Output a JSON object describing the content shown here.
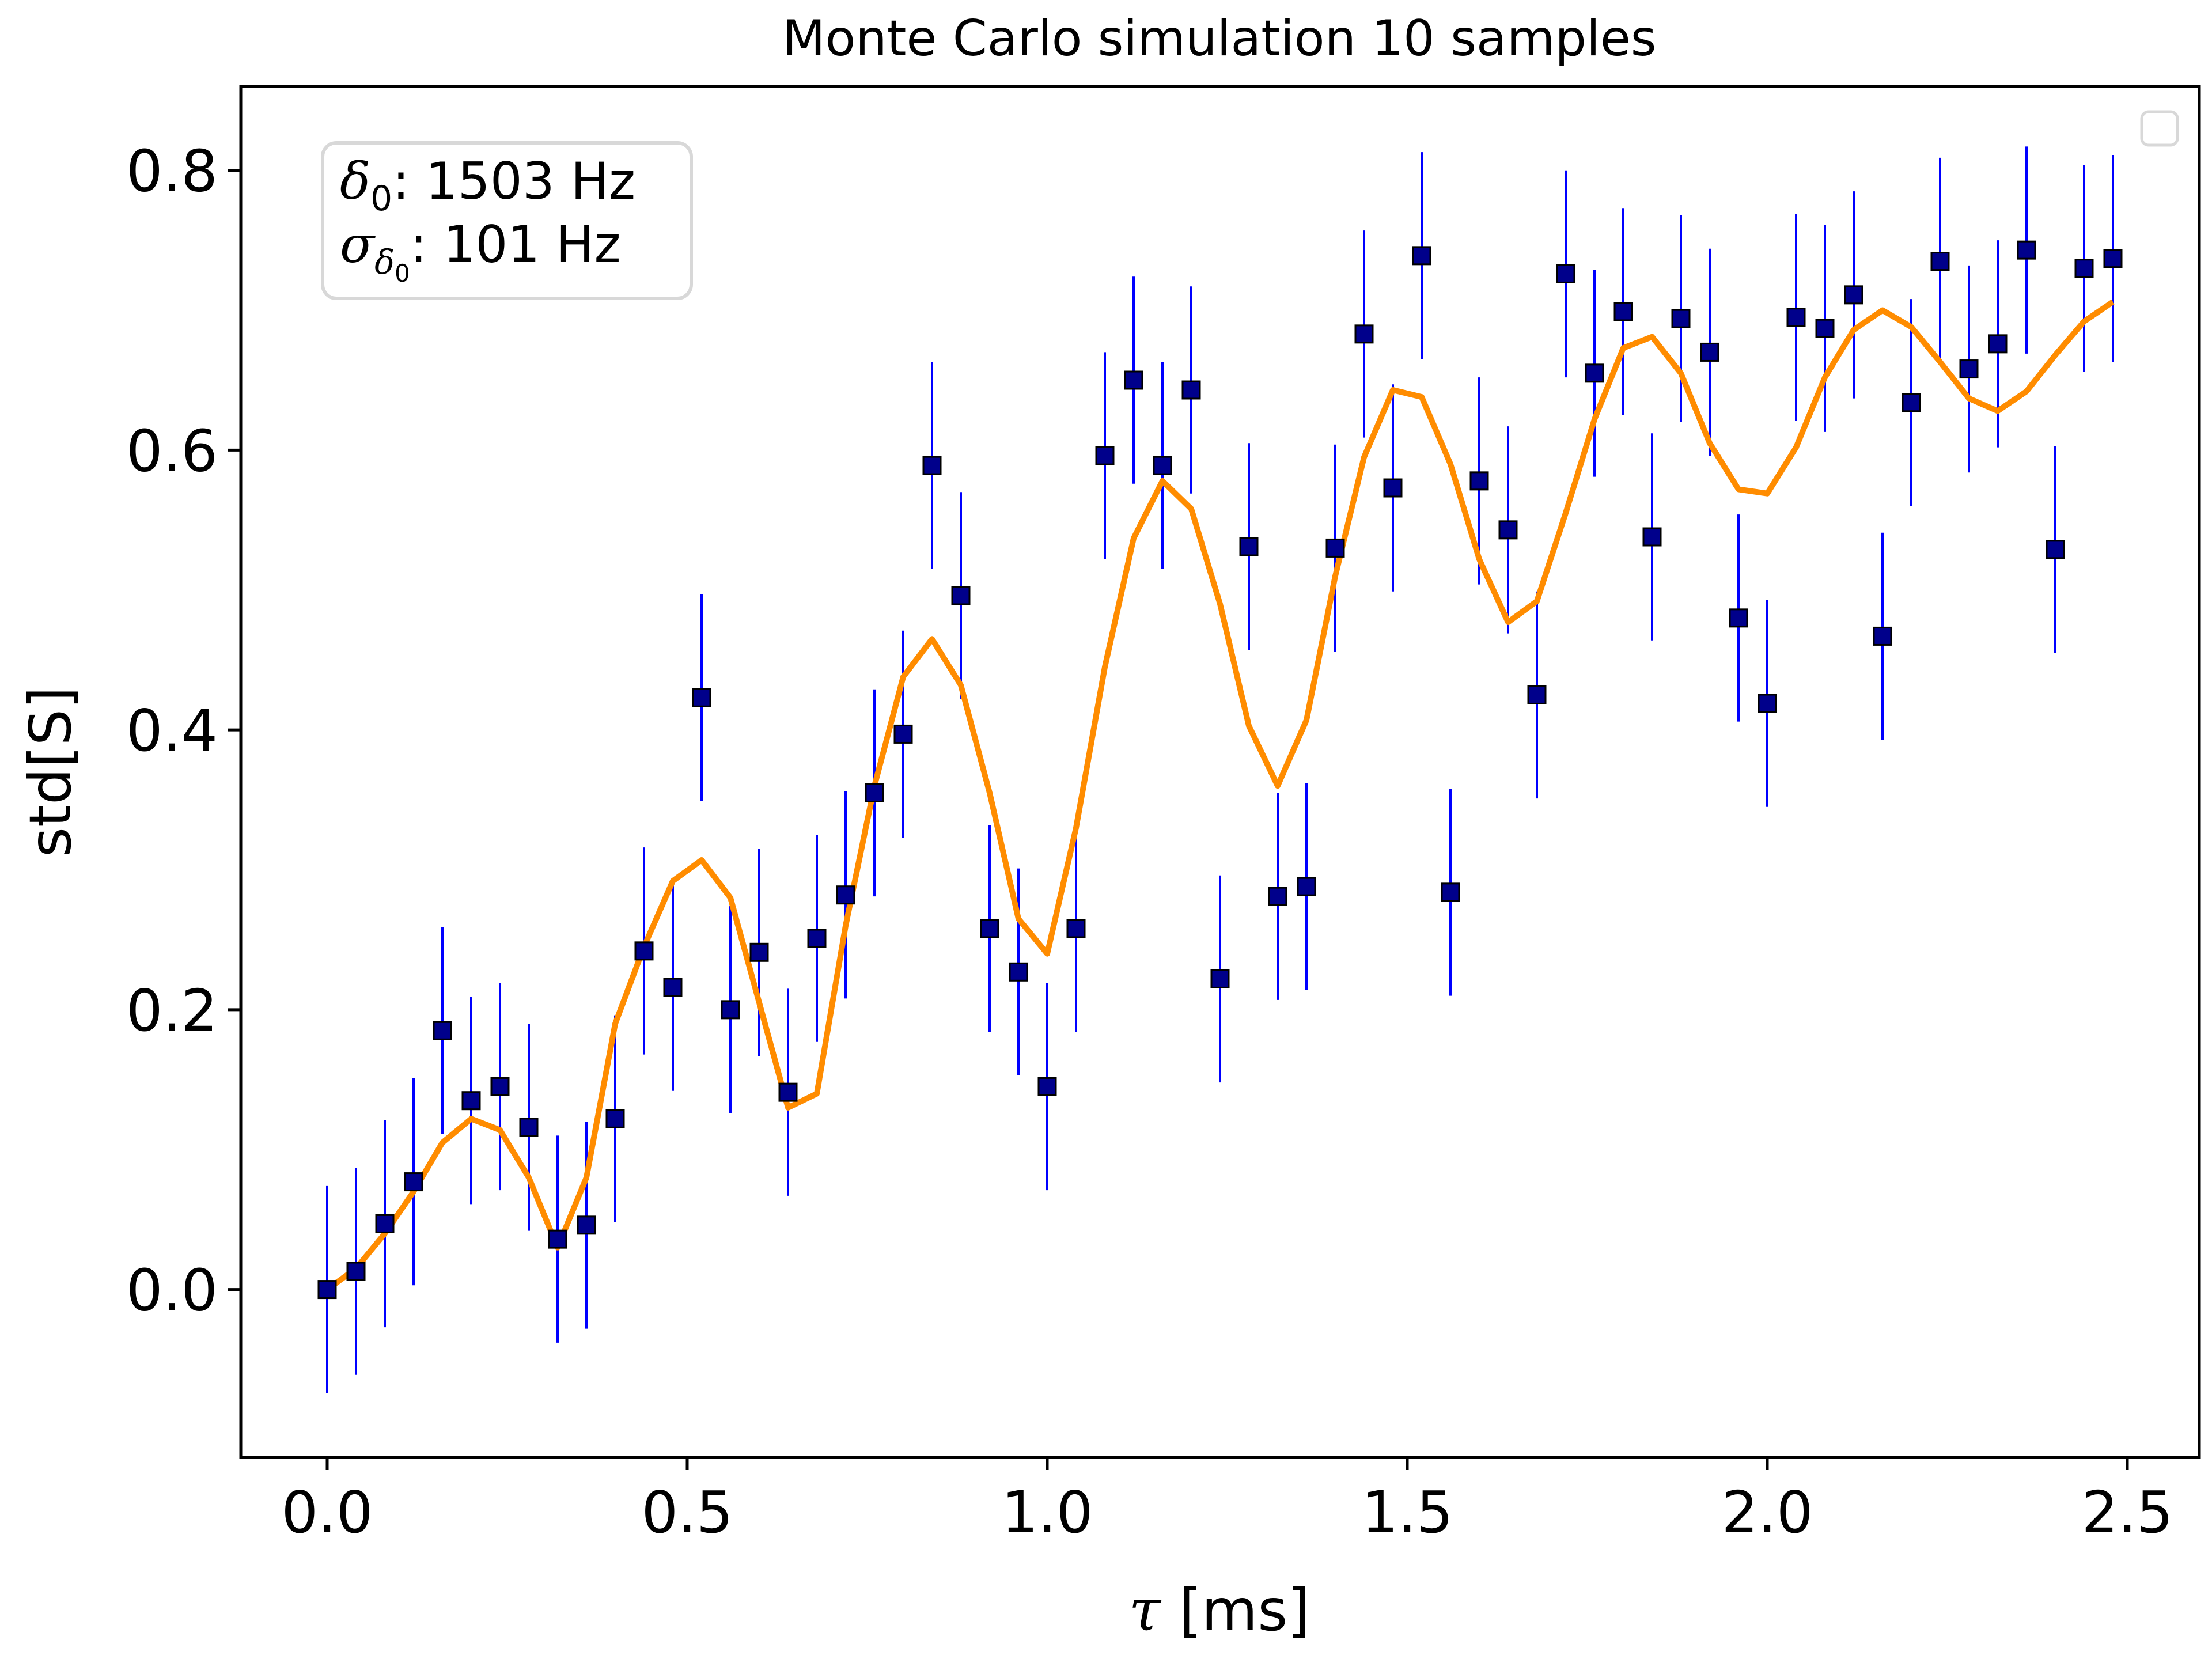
{
  "chart_data": {
    "type": "scatter",
    "title": "Monte Carlo simulation 10 samples",
    "xlabel_symbol": "τ",
    "xlabel_unit": "[ms]",
    "ylabel": "std[S]",
    "xlim": [
      -0.12,
      2.6
    ],
    "ylim": [
      -0.12,
      0.86
    ],
    "xticks": [
      "0.0",
      "0.5",
      "1.0",
      "1.5",
      "2.0",
      "2.5"
    ],
    "yticks": [
      "0.0",
      "0.2",
      "0.4",
      "0.6",
      "0.8"
    ],
    "xtick_values": [
      0.0,
      0.5,
      1.0,
      1.5,
      2.0,
      2.5
    ],
    "ytick_values": [
      0.0,
      0.2,
      0.4,
      0.6,
      0.8
    ],
    "grid": false,
    "legend": "top-right (empty)",
    "annotation": {
      "line1_sym": "δ",
      "line1_sub": "0",
      "line1_text": ": 1503 Hz",
      "line2_sym": "σ",
      "line2_sub": "δ",
      "line2_subsub": "0",
      "line2_text": ": 101 Hz"
    },
    "colors": {
      "markers": "#00008b",
      "errorbars": "#0000ff",
      "line": "#ff8c00"
    },
    "series": [
      {
        "kind": "markers-with-errorbars",
        "error": 0.074,
        "x": [
          0.0,
          0.04,
          0.08,
          0.12,
          0.16,
          0.2,
          0.24,
          0.28,
          0.32,
          0.36,
          0.4,
          0.44,
          0.48,
          0.52,
          0.56,
          0.6,
          0.64,
          0.68,
          0.72,
          0.76,
          0.8,
          0.84,
          0.88,
          0.92,
          0.96,
          1.0,
          1.04,
          1.08,
          1.12,
          1.16,
          1.2,
          1.24,
          1.28,
          1.32,
          1.36,
          1.4,
          1.44,
          1.48,
          1.52,
          1.56,
          1.6,
          1.64,
          1.68,
          1.72,
          1.76,
          1.8,
          1.84,
          1.88,
          1.92,
          1.96,
          2.0,
          2.04,
          2.08,
          2.12,
          2.16,
          2.2,
          2.24,
          2.28,
          2.32,
          2.36,
          2.4,
          2.44,
          2.48
        ],
        "y": [
          0.0,
          0.013,
          0.047,
          0.077,
          0.185,
          0.135,
          0.145,
          0.116,
          0.036,
          0.046,
          0.122,
          0.242,
          0.216,
          0.423,
          0.2,
          0.241,
          0.141,
          0.251,
          0.282,
          0.355,
          0.397,
          0.589,
          0.496,
          0.258,
          0.227,
          0.145,
          0.258,
          0.596,
          0.65,
          0.589,
          0.643,
          0.222,
          0.531,
          0.281,
          0.288,
          0.53,
          0.683,
          0.573,
          0.739,
          0.284,
          0.578,
          0.543,
          0.425,
          0.726,
          0.655,
          0.699,
          0.538,
          0.694,
          0.67,
          0.48,
          0.419,
          0.695,
          0.687,
          0.711,
          0.467,
          0.634,
          0.735,
          0.658,
          0.676,
          0.743,
          0.529,
          0.73,
          0.737
        ]
      },
      {
        "kind": "line",
        "x": [
          0.0,
          0.04,
          0.08,
          0.12,
          0.16,
          0.2,
          0.24,
          0.28,
          0.32,
          0.36,
          0.4,
          0.44,
          0.48,
          0.52,
          0.56,
          0.6,
          0.64,
          0.68,
          0.72,
          0.76,
          0.8,
          0.84,
          0.88,
          0.92,
          0.96,
          1.0,
          1.04,
          1.08,
          1.12,
          1.16,
          1.2,
          1.24,
          1.28,
          1.32,
          1.36,
          1.4,
          1.44,
          1.48,
          1.52,
          1.56,
          1.6,
          1.64,
          1.68,
          1.72,
          1.76,
          1.8,
          1.84,
          1.88,
          1.92,
          1.96,
          2.0,
          2.04,
          2.08,
          2.12,
          2.16,
          2.2,
          2.24,
          2.28,
          2.32,
          2.36,
          2.4,
          2.44,
          2.48
        ],
        "y": [
          0.0,
          0.015,
          0.04,
          0.07,
          0.105,
          0.122,
          0.114,
          0.08,
          0.03,
          0.08,
          0.19,
          0.245,
          0.292,
          0.307,
          0.28,
          0.205,
          0.13,
          0.14,
          0.26,
          0.36,
          0.438,
          0.465,
          0.432,
          0.355,
          0.265,
          0.24,
          0.33,
          0.445,
          0.537,
          0.578,
          0.558,
          0.49,
          0.403,
          0.36,
          0.407,
          0.51,
          0.595,
          0.643,
          0.638,
          0.59,
          0.522,
          0.477,
          0.492,
          0.555,
          0.622,
          0.673,
          0.681,
          0.655,
          0.605,
          0.572,
          0.569,
          0.602,
          0.652,
          0.686,
          0.7,
          0.688,
          0.663,
          0.637,
          0.628,
          0.642,
          0.668,
          0.692,
          0.706
        ]
      }
    ]
  }
}
